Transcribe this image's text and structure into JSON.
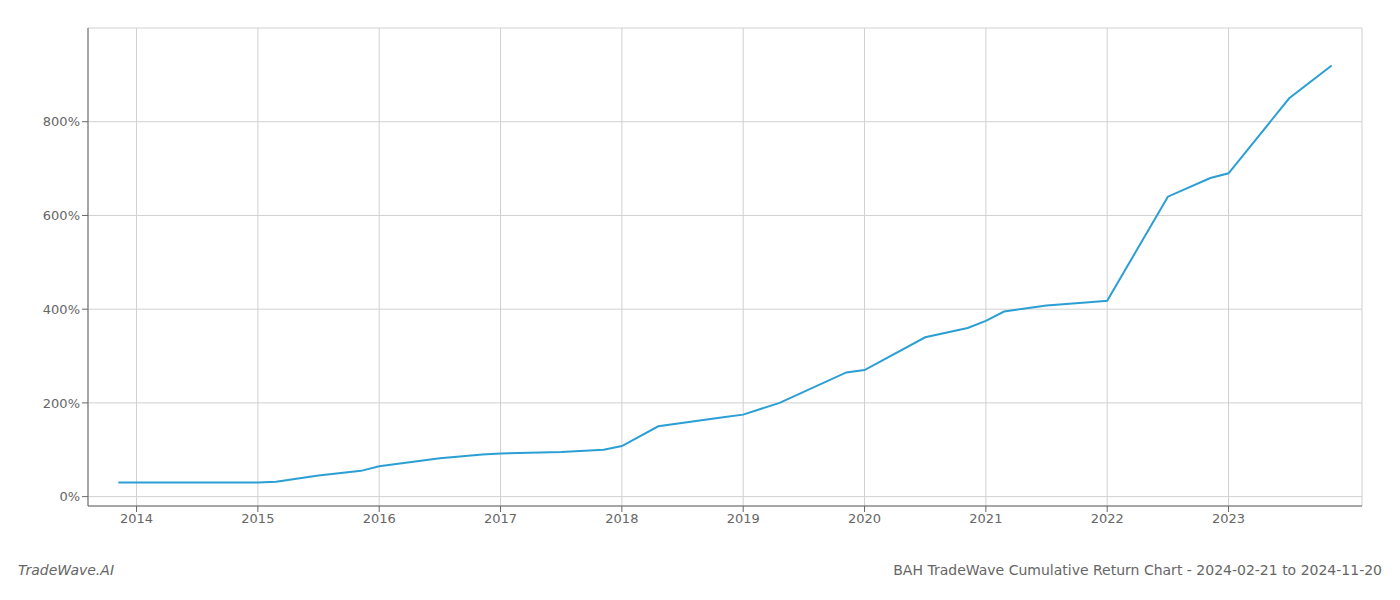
{
  "chart_data": {
    "type": "line",
    "title": "BAH TradeWave Cumulative Return Chart - 2024-02-21 to 2024-11-20",
    "annotations": [
      "TradeWave.AI"
    ],
    "color": "#2b9fd4",
    "grid": true,
    "x": [
      2013.85,
      2014.0,
      2014.5,
      2014.85,
      2015.0,
      2015.15,
      2015.5,
      2015.85,
      2016.0,
      2016.5,
      2016.85,
      2017.0,
      2017.5,
      2017.85,
      2018.0,
      2018.3,
      2018.85,
      2019.0,
      2019.3,
      2019.85,
      2020.0,
      2020.5,
      2020.85,
      2021.0,
      2021.15,
      2021.5,
      2021.85,
      2022.0,
      2022.5,
      2022.85,
      2023.0,
      2023.5,
      2023.85
    ],
    "values": [
      30,
      30,
      30,
      30,
      30,
      32,
      45,
      55,
      65,
      82,
      90,
      92,
      95,
      100,
      108,
      150,
      170,
      175,
      200,
      265,
      270,
      340,
      360,
      375,
      395,
      408,
      415,
      418,
      640,
      680,
      690,
      850,
      920
    ],
    "xlim": [
      2013.6,
      2024.1
    ],
    "xticks": [
      2014,
      2015,
      2016,
      2017,
      2018,
      2019,
      2020,
      2021,
      2022,
      2023
    ],
    "ylim": [
      -20,
      1000
    ],
    "yticks": [
      {
        "value": 0,
        "label": "0%"
      },
      {
        "value": 200,
        "label": "200%"
      },
      {
        "value": 400,
        "label": "400%"
      },
      {
        "value": 600,
        "label": "600%"
      },
      {
        "value": 800,
        "label": "800%"
      }
    ]
  }
}
